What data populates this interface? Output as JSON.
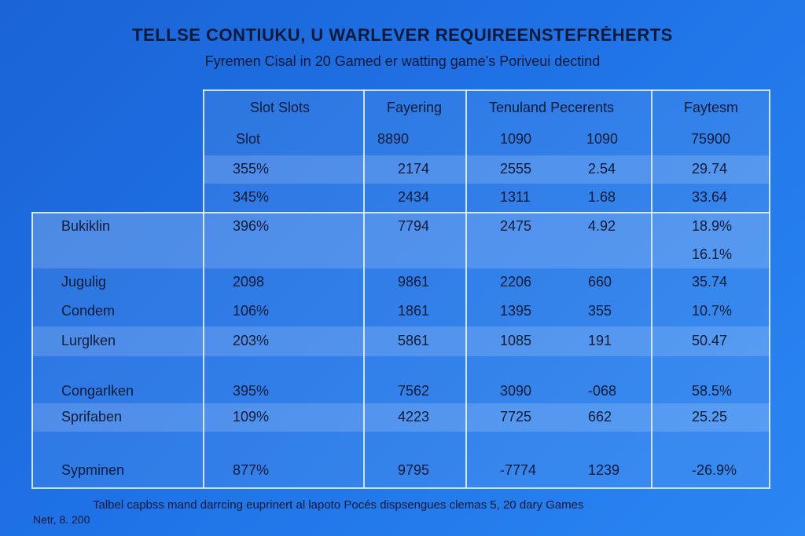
{
  "header": {
    "title": "TELLSE CONTIUKU, U WARLEVER REQUIREENSTEFRĖHERTS",
    "subtitle": "Fyremen Cisal in 20 Gamed er watting game's Poriveui dectind"
  },
  "chart_data": {
    "type": "table",
    "title": "TELLSE CONTIUKU, U WARLEVER REQUIREENSTEFRĖHERTS",
    "subtitle": "Fyremen Cisal in 20 Gamed er watting game's Poriveui dectind",
    "columns": [
      "",
      "Slot Slots",
      "Fayering",
      "Tenuland Pecerents",
      "",
      "Faytesm"
    ],
    "subheader": [
      "",
      "Slot",
      "8890",
      "1090",
      "1090",
      "75900"
    ],
    "rows": [
      [
        "",
        "355%",
        "2174",
        "2555",
        "2.54",
        "29.74"
      ],
      [
        "",
        "345%",
        "2434",
        "1311",
        "1.68",
        "33.64"
      ],
      [
        "Bukiklin",
        "396%",
        "7794",
        "2475",
        "4.92",
        "18.9%"
      ],
      [
        "",
        "",
        "",
        "",
        "",
        "16.1%"
      ],
      [
        "Jugulig",
        "2098",
        "9861",
        "2206",
        "660",
        "35.74"
      ],
      [
        "Condem",
        "106%",
        "1861",
        "1395",
        "355",
        "10.7%"
      ],
      [
        "Lurglken",
        "203%",
        "5861",
        "1085",
        "191",
        "50.47"
      ],
      [
        "Congarlken",
        "395%",
        "7562",
        "3090",
        "-068",
        "58.5%"
      ],
      [
        "Sprifaben",
        "109%",
        "4223",
        "7725",
        "662",
        "25.25"
      ],
      [
        "Sypminen",
        "877%",
        "9795",
        "-7774",
        "1239",
        "-26.9%"
      ]
    ]
  },
  "footer": {
    "note": "Talbel capbss mand darrcing euprinert al lapoto Pocés dispsengues clemas 5, 20 dary Games",
    "date": "Netr, 8. 200"
  }
}
